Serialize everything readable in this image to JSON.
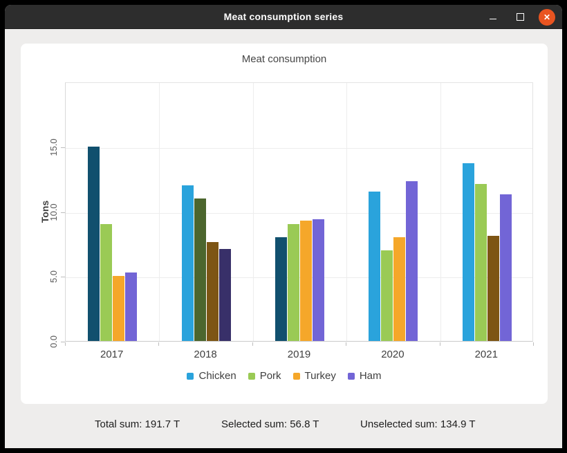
{
  "window": {
    "title": "Meat consumption series",
    "close_glyph": "✕"
  },
  "status_bar": {
    "total": "Total sum: 191.7 T",
    "selected": "Selected sum: 56.8 T",
    "unselected": "Unselected sum: 134.9 T"
  },
  "colors": {
    "titlebar_bg": "#2d2d2d",
    "close_button": "#e95420",
    "window_bg": "#eeedec",
    "panel_bg": "#ffffff",
    "gridline": "#ededed",
    "axis_text": "#3f3f3f"
  },
  "chart_data": {
    "type": "bar",
    "title": "Meat consumption",
    "xlabel": "",
    "ylabel": "Tons",
    "ylim": [
      0,
      20
    ],
    "grid": true,
    "legend_position": "bottom",
    "yticks": [
      {
        "value": 0,
        "label": "0.0"
      },
      {
        "value": 5,
        "label": "5.0"
      },
      {
        "value": 10,
        "label": "10.0"
      },
      {
        "value": 15,
        "label": "15.0"
      }
    ],
    "categories": [
      "2017",
      "2018",
      "2019",
      "2020",
      "2021"
    ],
    "series": [
      {
        "name": "Chicken",
        "color": "#2aa3dc",
        "selected_color": "#11506e",
        "values": [
          15.0,
          12.0,
          8.0,
          11.5,
          13.7
        ],
        "selected": [
          true,
          false,
          true,
          false,
          false
        ]
      },
      {
        "name": "Pork",
        "color": "#9aca55",
        "selected_color": "#4c662e",
        "values": [
          9.0,
          11.0,
          9.0,
          7.0,
          12.1
        ],
        "selected": [
          false,
          true,
          false,
          false,
          false
        ]
      },
      {
        "name": "Turkey",
        "color": "#f5a72a",
        "selected_color": "#7d5514",
        "values": [
          5.0,
          7.6,
          9.3,
          8.0,
          8.1
        ],
        "selected": [
          false,
          true,
          false,
          false,
          true
        ]
      },
      {
        "name": "Ham",
        "color": "#7265d6",
        "selected_color": "#383069",
        "values": [
          5.3,
          7.1,
          9.4,
          12.3,
          11.3
        ],
        "selected": [
          false,
          true,
          false,
          false,
          false
        ]
      }
    ]
  }
}
